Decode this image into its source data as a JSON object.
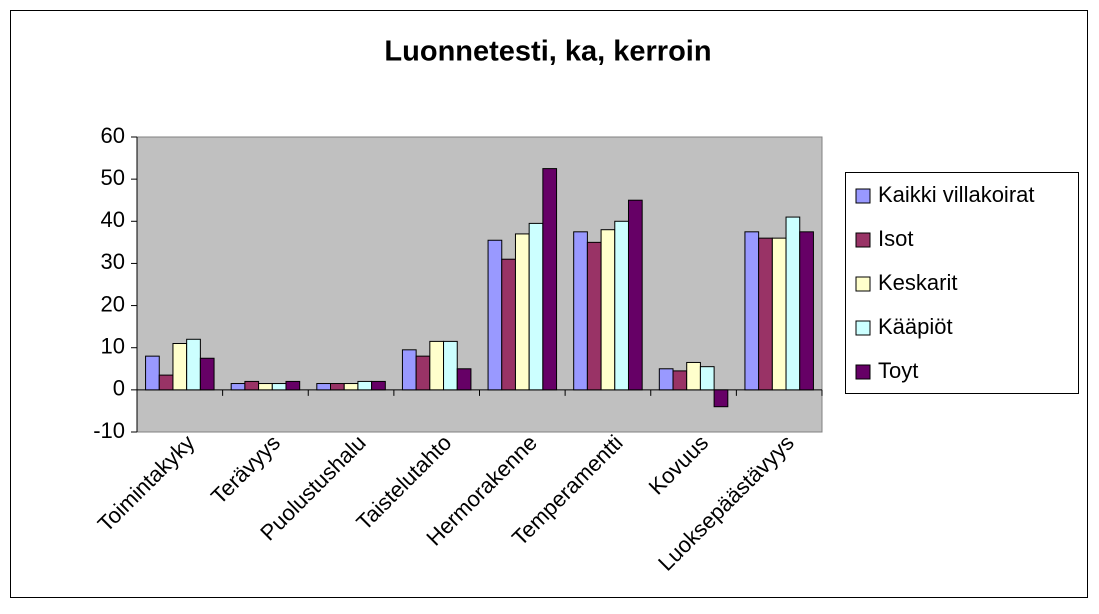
{
  "chart_data": {
    "type": "bar",
    "title": "Luonnetesti, ka, kerroin",
    "categories": [
      "Toimintakyky",
      "Terävyys",
      "Puolustushalu",
      "Taistelutahto",
      "Hermorakenne",
      "Temperamentti",
      "Kovuus",
      "Luoksepäästävyys"
    ],
    "series": [
      {
        "name": "Kaikki villakoirat",
        "color": "#9999ff",
        "values": [
          8,
          1.5,
          1.5,
          9.5,
          35.5,
          37.5,
          5,
          37.5
        ]
      },
      {
        "name": "Isot",
        "color": "#993366",
        "values": [
          3.5,
          2,
          1.5,
          8,
          31,
          35,
          4.5,
          36
        ]
      },
      {
        "name": "Keskarit",
        "color": "#ffffcc",
        "values": [
          11,
          1.5,
          1.5,
          11.5,
          37,
          38,
          6.5,
          36
        ]
      },
      {
        "name": "Kääpiöt",
        "color": "#ccffff",
        "values": [
          12,
          1.5,
          2,
          11.5,
          39.5,
          40,
          5.5,
          41
        ]
      },
      {
        "name": "Toyt",
        "color": "#660066",
        "values": [
          7.5,
          2,
          2,
          5,
          52.5,
          45,
          -4,
          37.5
        ]
      }
    ],
    "ylim": [
      -10,
      60
    ],
    "yticks": [
      -10,
      0,
      10,
      20,
      30,
      40,
      50,
      60
    ],
    "grid": false,
    "legend": "right"
  }
}
